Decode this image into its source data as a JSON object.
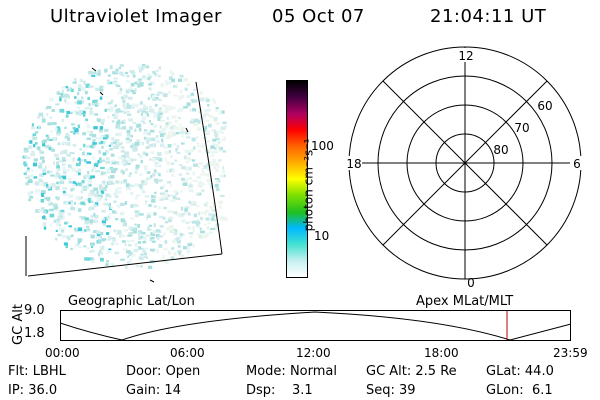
{
  "header": {
    "instrument": "Ultraviolet Imager",
    "date": "05 Oct 07",
    "time": "21:04:11 UT"
  },
  "colorbar": {
    "unit_label": "photon cm⁻²s⁻¹",
    "ticks": [
      {
        "value": 10,
        "label": "10"
      },
      {
        "value": 100,
        "label": "100"
      }
    ],
    "colors": [
      "#ffffff",
      "#c8f0f0",
      "#40e0d0",
      "#00b8ff",
      "#20c020",
      "#80e000",
      "#ffff00",
      "#ffb000",
      "#ff6000",
      "#ff0000",
      "#b00060",
      "#400040",
      "#000000"
    ]
  },
  "polar_plot": {
    "mlt_labels": {
      "top": "12",
      "left": "18",
      "right": "6",
      "bottom": "0"
    },
    "lat_labels": [
      "60",
      "70",
      "80"
    ]
  },
  "timeline": {
    "left_title": "Geographic Lat/Lon",
    "right_title": "Apex MLat/MLT",
    "ylabel": "GC Alt",
    "yticks": [
      "9.0",
      "1.8"
    ],
    "xticks": [
      "00:00",
      "06:00",
      "12:00",
      "18:00",
      "23:59"
    ],
    "marker_color": "#c00000"
  },
  "status": {
    "flt": {
      "label": "Flt:",
      "value": "LBHL"
    },
    "door": {
      "label": "Door:",
      "value": "Open"
    },
    "mode": {
      "label": "Mode:",
      "value": "Normal"
    },
    "gcalt": {
      "label": "GC Alt:",
      "value": "2.5 Re"
    },
    "glat": {
      "label": "GLat:",
      "value": "44.0"
    },
    "ip": {
      "label": "IP:",
      "value": "36.0"
    },
    "gain": {
      "label": "Gain:",
      "value": "14"
    },
    "dsp": {
      "label": "Dsp:",
      "value": "3.1"
    },
    "seq": {
      "label": "Seq:",
      "value": "39"
    },
    "glon": {
      "label": "GLon:",
      "value": "6.1"
    }
  }
}
